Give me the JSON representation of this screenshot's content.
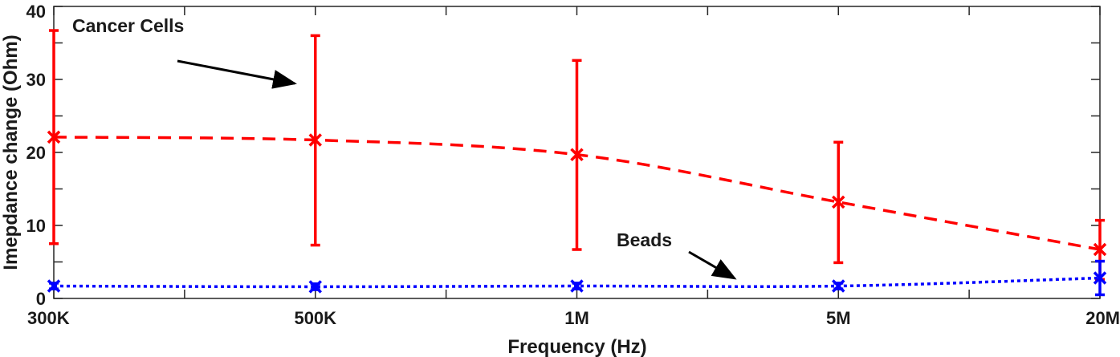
{
  "chart_data": {
    "type": "line",
    "title": "",
    "xlabel": "Frequency (Hz)",
    "ylabel": "Imepdance change (Ohm)",
    "categories": [
      "300K",
      "500K",
      "1M",
      "5M",
      "20M"
    ],
    "ylim": [
      0,
      40
    ],
    "yticks": [
      0,
      10,
      20,
      30,
      40
    ],
    "grid": false,
    "series": [
      {
        "name": "Cancer Cells",
        "color": "#ff0000",
        "line_style": "dashed",
        "marker": "x",
        "values": [
          22.1,
          21.7,
          19.7,
          13.2,
          6.7
        ],
        "error_low": [
          7.5,
          7.3,
          6.7,
          4.9,
          2.6
        ],
        "error_high": [
          36.7,
          36.0,
          32.6,
          21.4,
          10.7
        ]
      },
      {
        "name": "Beads",
        "color": "#0000ff",
        "line_style": "dotted",
        "marker": "x",
        "values": [
          1.7,
          1.6,
          1.7,
          1.7,
          2.8
        ],
        "error_low": [
          1.3,
          1.2,
          1.3,
          1.3,
          0.5
        ],
        "error_high": [
          2.1,
          2.0,
          2.1,
          2.1,
          5.1
        ]
      }
    ],
    "annotations": [
      {
        "text": "Cancer Cells",
        "series": "Cancer Cells"
      },
      {
        "text": "Beads",
        "series": "Beads"
      }
    ]
  }
}
